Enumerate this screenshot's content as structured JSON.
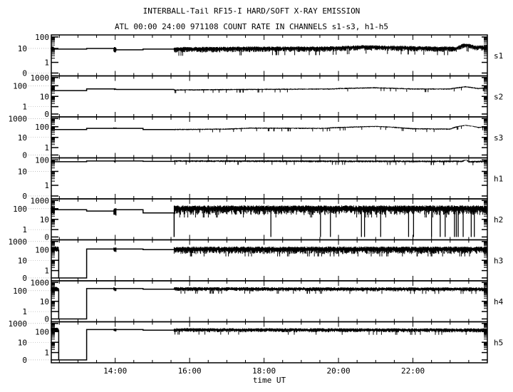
{
  "chart_data": {
    "type": "line",
    "title": "INTERBALL-Tail RF15-I HARD/SOFT X-RAY EMISSION",
    "subtitle": "ATL 00:00 24:00 971108  COUNT RATE IN CHANNELS s1-s3, h1-h5",
    "xlabel": "time UT",
    "xlim": [
      "12:17",
      "24:00"
    ],
    "x_tick_labels": [
      "14:00",
      "16:00",
      "18:00",
      "20:00",
      "22:00"
    ],
    "y_scale": "log (with zero)",
    "colors": {
      "line": "#000000",
      "background": "#ffffff"
    },
    "panels": [
      {
        "name": "s1",
        "yticks": [
          "100",
          "10",
          "1",
          "0"
        ],
        "steps": [
          [
            "12:22",
            9
          ],
          [
            "13:14",
            9
          ],
          [
            "13:14",
            10
          ],
          [
            "13:58",
            10
          ],
          [
            "14:02",
            8
          ],
          [
            "14:45",
            8
          ],
          [
            "14:45",
            9
          ],
          [
            "15:35",
            9
          ]
        ],
        "bursts": [
          {
            "t0": "12:17",
            "t1": "12:22",
            "lo": 6,
            "hi": 15
          },
          {
            "t0": "13:58",
            "t1": "14:02",
            "lo": 5,
            "hi": 14
          }
        ],
        "noisy": {
          "t0": "15:35",
          "t1": "24:00",
          "trend": [
            [
              "15:35",
              9
            ],
            [
              "18:00",
              10
            ],
            [
              "19:40",
              10
            ],
            [
              "20:40",
              13
            ],
            [
              "22:40",
              10
            ],
            [
              "23:10",
              10
            ],
            [
              "23:25",
              20
            ],
            [
              "23:40",
              12
            ],
            [
              "24:00",
              13
            ]
          ],
          "lo_factor": 0.55,
          "hi_factor": 1.5
        },
        "dropouts": []
      },
      {
        "name": "s2",
        "yticks": [
          "1000",
          "100",
          "10",
          "1",
          "0"
        ],
        "steps": [
          [
            "12:22",
            35
          ],
          [
            "13:14",
            35
          ],
          [
            "13:14",
            50
          ],
          [
            "13:58",
            50
          ],
          [
            "14:02",
            45
          ],
          [
            "15:35",
            45
          ]
        ],
        "bursts": [
          {
            "t0": "12:17",
            "t1": "12:22",
            "lo": 30,
            "hi": 70
          },
          {
            "t0": "13:58",
            "t1": "14:02",
            "lo": 40,
            "hi": 60
          }
        ],
        "noisy": {
          "t0": "15:35",
          "t1": "24:00",
          "trend": [
            [
              "15:35",
              40
            ],
            [
              "17:30",
              45
            ],
            [
              "19:50",
              50
            ],
            [
              "20:00",
              55
            ],
            [
              "21:00",
              65
            ],
            [
              "22:00",
              50
            ],
            [
              "23:00",
              50
            ],
            [
              "23:25",
              80
            ],
            [
              "23:45",
              55
            ],
            [
              "24:00",
              65
            ]
          ],
          "lo_factor": 0.85,
          "hi_factor": 1.15
        },
        "dropouts": []
      },
      {
        "name": "s3",
        "yticks": [
          "1000",
          "100",
          "10",
          "1",
          "0"
        ],
        "steps": [
          [
            "12:22",
            55
          ],
          [
            "13:14",
            55
          ],
          [
            "13:14",
            70
          ],
          [
            "14:45",
            70
          ],
          [
            "14:45",
            55
          ],
          [
            "15:35",
            55
          ]
        ],
        "bursts": [
          {
            "t0": "12:17",
            "t1": "12:22",
            "lo": 45,
            "hi": 80
          },
          {
            "t0": "13:58",
            "t1": "14:02",
            "lo": 65,
            "hi": 85
          }
        ],
        "noisy": {
          "t0": "15:35",
          "t1": "24:00",
          "trend": [
            [
              "15:35",
              55
            ],
            [
              "17:00",
              60
            ],
            [
              "17:40",
              75
            ],
            [
              "19:40",
              70
            ],
            [
              "19:50",
              80
            ],
            [
              "21:00",
              110
            ],
            [
              "22:00",
              65
            ],
            [
              "23:00",
              60
            ],
            [
              "23:25",
              150
            ],
            [
              "23:45",
              85
            ],
            [
              "24:00",
              100
            ]
          ],
          "lo_factor": 0.85,
          "hi_factor": 1.15
        },
        "dropouts": []
      },
      {
        "name": "h1",
        "yticks": [
          "100",
          "10",
          "1",
          "0"
        ],
        "steps": [
          [
            "12:22",
            70
          ],
          [
            "13:14",
            70
          ],
          [
            "13:14",
            80
          ],
          [
            "14:45",
            80
          ],
          [
            "14:45",
            75
          ],
          [
            "15:35",
            75
          ]
        ],
        "bursts": [
          {
            "t0": "12:17",
            "t1": "12:22",
            "lo": 50,
            "hi": 100
          },
          {
            "t0": "13:58",
            "t1": "14:02",
            "lo": 60,
            "hi": 90
          }
        ],
        "noisy": {
          "t0": "15:35",
          "t1": "24:00",
          "trend": [
            [
              "15:35",
              80
            ],
            [
              "23:20",
              75
            ],
            [
              "23:25",
              110
            ],
            [
              "23:30",
              70
            ],
            [
              "24:00",
              75
            ]
          ],
          "lo_factor": 0.8,
          "hi_factor": 1.2
        },
        "dropouts": []
      },
      {
        "name": "h2",
        "yticks": [
          "1000",
          "100",
          "10",
          "1",
          "0"
        ],
        "steps": [
          [
            "12:22",
            80
          ],
          [
            "13:14",
            80
          ],
          [
            "13:14",
            60
          ],
          [
            "13:58",
            60
          ],
          [
            "14:02",
            80
          ],
          [
            "14:45",
            80
          ],
          [
            "14:45",
            40
          ],
          [
            "15:35",
            40
          ],
          [
            "15:35",
            0
          ]
        ],
        "bursts": [
          {
            "t0": "12:17",
            "t1": "12:22",
            "lo": 30,
            "hi": 200
          },
          {
            "t0": "13:58",
            "t1": "14:02",
            "lo": 20,
            "hi": 120
          }
        ],
        "noisy": {
          "t0": "15:35",
          "t1": "24:00",
          "trend": [
            [
              "15:35",
              100
            ],
            [
              "24:00",
              100
            ]
          ],
          "lo_factor": 0.25,
          "hi_factor": 2.5
        },
        "dropouts": [
          "18:11",
          "19:31",
          "19:47",
          "20:37",
          "20:42",
          "21:08",
          "21:53",
          "22:01",
          "22:30",
          "22:44",
          "22:52",
          "23:07",
          "23:10",
          "23:13",
          "23:21",
          "23:34",
          "23:39"
        ]
      },
      {
        "name": "h3",
        "yticks": [
          "1000",
          "100",
          "10",
          "1",
          "0"
        ],
        "steps": [
          [
            "12:29",
            100
          ],
          [
            "12:29",
            0
          ],
          [
            "13:14",
            0
          ],
          [
            "13:14",
            120
          ],
          [
            "14:45",
            120
          ],
          [
            "14:45",
            100
          ],
          [
            "15:35",
            100
          ]
        ],
        "bursts": [
          {
            "t0": "12:17",
            "t1": "12:29",
            "lo": 60,
            "hi": 250
          },
          {
            "t0": "13:58",
            "t1": "14:02",
            "lo": 60,
            "hi": 200
          }
        ],
        "noisy": {
          "t0": "15:35",
          "t1": "24:00",
          "trend": [
            [
              "15:35",
              110
            ],
            [
              "24:00",
              110
            ]
          ],
          "lo_factor": 0.35,
          "hi_factor": 2.2
        },
        "dropouts": []
      },
      {
        "name": "h4",
        "yticks": [
          "1000",
          "100",
          "10",
          "1",
          "0"
        ],
        "steps": [
          [
            "12:29",
            150
          ],
          [
            "12:29",
            0
          ],
          [
            "13:14",
            0
          ],
          [
            "13:14",
            180
          ],
          [
            "14:45",
            180
          ],
          [
            "14:45",
            150
          ],
          [
            "15:35",
            150
          ]
        ],
        "bursts": [
          {
            "t0": "12:17",
            "t1": "12:29",
            "lo": 90,
            "hi": 300
          },
          {
            "t0": "13:58",
            "t1": "14:02",
            "lo": 90,
            "hi": 260
          }
        ],
        "noisy": {
          "t0": "15:35",
          "t1": "24:00",
          "trend": [
            [
              "15:35",
              160
            ],
            [
              "24:00",
              150
            ]
          ],
          "lo_factor": 0.55,
          "hi_factor": 1.7
        },
        "dropouts": []
      },
      {
        "name": "h5",
        "yticks": [
          "1000",
          "100",
          "10",
          "1",
          "0"
        ],
        "steps": [
          [
            "12:29",
            150
          ],
          [
            "12:29",
            0
          ],
          [
            "13:14",
            0
          ],
          [
            "13:14",
            180
          ],
          [
            "14:45",
            180
          ],
          [
            "14:45",
            150
          ],
          [
            "15:35",
            150
          ]
        ],
        "bursts": [
          {
            "t0": "12:17",
            "t1": "12:29",
            "lo": 90,
            "hi": 300
          },
          {
            "t0": "13:58",
            "t1": "14:02",
            "lo": 100,
            "hi": 260
          }
        ],
        "noisy": {
          "t0": "15:35",
          "t1": "24:00",
          "trend": [
            [
              "15:35",
              160
            ],
            [
              "24:00",
              150
            ]
          ],
          "lo_factor": 0.55,
          "hi_factor": 1.7
        },
        "dropouts": []
      }
    ]
  }
}
